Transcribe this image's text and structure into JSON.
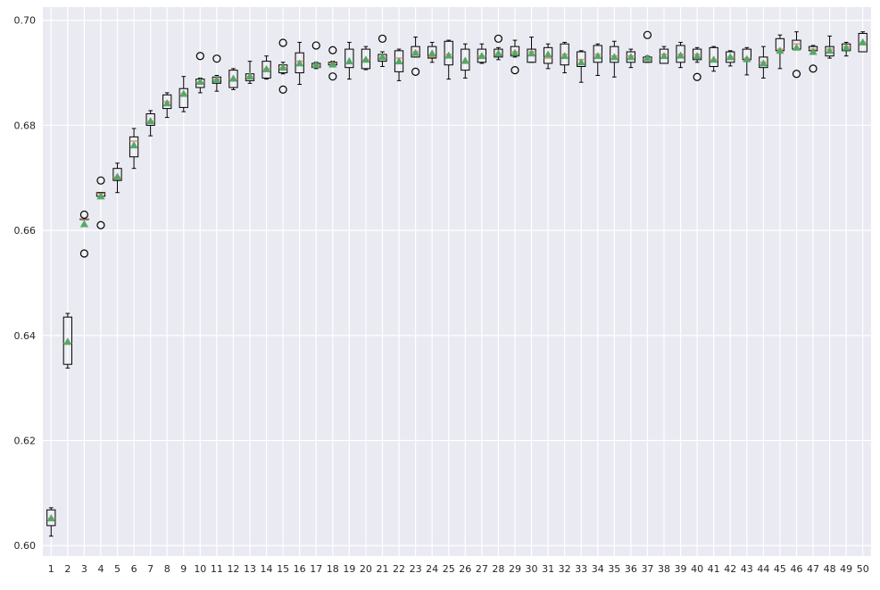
{
  "chart_data": {
    "type": "boxplot",
    "title": "",
    "xlabel": "",
    "ylabel": "",
    "ylim": [
      0.598,
      0.7025
    ],
    "grid": true,
    "colors": {
      "background": "#eaeaf2",
      "grid": "#ffffff",
      "box": "#000000",
      "median": "#dd8452",
      "mean_marker": "#55a868"
    },
    "categories": [
      "1",
      "2",
      "3",
      "4",
      "5",
      "6",
      "7",
      "8",
      "9",
      "10",
      "11",
      "12",
      "13",
      "14",
      "15",
      "16",
      "17",
      "18",
      "19",
      "20",
      "21",
      "22",
      "23",
      "24",
      "25",
      "26",
      "27",
      "28",
      "29",
      "30",
      "31",
      "32",
      "33",
      "34",
      "35",
      "36",
      "37",
      "38",
      "39",
      "40",
      "41",
      "42",
      "43",
      "44",
      "45",
      "46",
      "47",
      "48",
      "49",
      "50"
    ],
    "y_ticks": [
      "0.60",
      "0.62",
      "0.64",
      "0.66",
      "0.68",
      "0.70"
    ],
    "y_tick_values": [
      0.6,
      0.62,
      0.64,
      0.66,
      0.68,
      0.7
    ],
    "boxes": [
      {
        "x": "1",
        "whislo": 0.6018,
        "q1": 0.6038,
        "med": 0.6052,
        "q3": 0.6068,
        "whishi": 0.6072,
        "mean": 0.6052,
        "fliers": []
      },
      {
        "x": "2",
        "whislo": 0.6338,
        "q1": 0.6345,
        "med": 0.6385,
        "q3": 0.6435,
        "whishi": 0.6442,
        "mean": 0.6388,
        "fliers": []
      },
      {
        "x": "3",
        "whislo": 0.6622,
        "q1": 0.6622,
        "med": 0.6622,
        "q3": 0.6622,
        "whishi": 0.6622,
        "mean": 0.6612,
        "fliers": [
          0.663,
          0.6556
        ]
      },
      {
        "x": "4",
        "whislo": 0.6665,
        "q1": 0.6665,
        "med": 0.667,
        "q3": 0.6672,
        "whishi": 0.6672,
        "mean": 0.6665,
        "fliers": [
          0.6695,
          0.661
        ]
      },
      {
        "x": "5",
        "whislo": 0.6672,
        "q1": 0.6695,
        "med": 0.6702,
        "q3": 0.6718,
        "whishi": 0.6728,
        "mean": 0.6702,
        "fliers": []
      },
      {
        "x": "6",
        "whislo": 0.6718,
        "q1": 0.674,
        "med": 0.677,
        "q3": 0.6778,
        "whishi": 0.6794,
        "mean": 0.6762,
        "fliers": []
      },
      {
        "x": "7",
        "whislo": 0.678,
        "q1": 0.68,
        "med": 0.6808,
        "q3": 0.6822,
        "whishi": 0.6828,
        "mean": 0.6808,
        "fliers": []
      },
      {
        "x": "8",
        "whislo": 0.6815,
        "q1": 0.6832,
        "med": 0.6845,
        "q3": 0.6858,
        "whishi": 0.6862,
        "mean": 0.6842,
        "fliers": []
      },
      {
        "x": "9",
        "whislo": 0.6826,
        "q1": 0.6834,
        "med": 0.686,
        "q3": 0.687,
        "whishi": 0.6893,
        "mean": 0.686,
        "fliers": []
      },
      {
        "x": "10",
        "whislo": 0.6862,
        "q1": 0.6872,
        "med": 0.6882,
        "q3": 0.6888,
        "whishi": 0.689,
        "mean": 0.6883,
        "fliers": [
          0.6932
        ]
      },
      {
        "x": "11",
        "whislo": 0.6865,
        "q1": 0.688,
        "med": 0.6888,
        "q3": 0.6892,
        "whishi": 0.6895,
        "mean": 0.6887,
        "fliers": [
          0.6927
        ]
      },
      {
        "x": "12",
        "whislo": 0.6868,
        "q1": 0.6872,
        "med": 0.6888,
        "q3": 0.6905,
        "whishi": 0.6908,
        "mean": 0.6889,
        "fliers": []
      },
      {
        "x": "13",
        "whislo": 0.688,
        "q1": 0.6885,
        "med": 0.6893,
        "q3": 0.6898,
        "whishi": 0.6922,
        "mean": 0.6893,
        "fliers": []
      },
      {
        "x": "14",
        "whislo": 0.6888,
        "q1": 0.689,
        "med": 0.6908,
        "q3": 0.6922,
        "whishi": 0.6932,
        "mean": 0.6907,
        "fliers": []
      },
      {
        "x": "15",
        "whislo": 0.6898,
        "q1": 0.69,
        "med": 0.691,
        "q3": 0.6915,
        "whishi": 0.692,
        "mean": 0.691,
        "fliers": [
          0.6957,
          0.6868
        ]
      },
      {
        "x": "16",
        "whislo": 0.6878,
        "q1": 0.69,
        "med": 0.6922,
        "q3": 0.6938,
        "whishi": 0.6958,
        "mean": 0.6918,
        "fliers": []
      },
      {
        "x": "17",
        "whislo": 0.6908,
        "q1": 0.691,
        "med": 0.6915,
        "q3": 0.6918,
        "whishi": 0.692,
        "mean": 0.6915,
        "fliers": [
          0.6952
        ]
      },
      {
        "x": "18",
        "whislo": 0.6912,
        "q1": 0.6915,
        "med": 0.6918,
        "q3": 0.692,
        "whishi": 0.6922,
        "mean": 0.6916,
        "fliers": [
          0.6943,
          0.6893
        ]
      },
      {
        "x": "19",
        "whislo": 0.6888,
        "q1": 0.691,
        "med": 0.6918,
        "q3": 0.6945,
        "whishi": 0.6958,
        "mean": 0.6922,
        "fliers": []
      },
      {
        "x": "20",
        "whislo": 0.6906,
        "q1": 0.6908,
        "med": 0.6925,
        "q3": 0.6945,
        "whishi": 0.695,
        "mean": 0.6925,
        "fliers": []
      },
      {
        "x": "21",
        "whislo": 0.6912,
        "q1": 0.6922,
        "med": 0.693,
        "q3": 0.6935,
        "whishi": 0.694,
        "mean": 0.693,
        "fliers": [
          0.6965
        ]
      },
      {
        "x": "22",
        "whislo": 0.6885,
        "q1": 0.6902,
        "med": 0.6928,
        "q3": 0.6942,
        "whishi": 0.6945,
        "mean": 0.6922,
        "fliers": []
      },
      {
        "x": "23",
        "whislo": 0.693,
        "q1": 0.693,
        "med": 0.694,
        "q3": 0.695,
        "whishi": 0.6968,
        "mean": 0.6938,
        "fliers": [
          0.6902
        ]
      },
      {
        "x": "24",
        "whislo": 0.692,
        "q1": 0.6928,
        "med": 0.693,
        "q3": 0.695,
        "whishi": 0.6958,
        "mean": 0.6937,
        "fliers": []
      },
      {
        "x": "25",
        "whislo": 0.6888,
        "q1": 0.6915,
        "med": 0.6935,
        "q3": 0.696,
        "whishi": 0.6962,
        "mean": 0.6933,
        "fliers": []
      },
      {
        "x": "26",
        "whislo": 0.689,
        "q1": 0.6905,
        "med": 0.6918,
        "q3": 0.6945,
        "whishi": 0.6955,
        "mean": 0.6923,
        "fliers": []
      },
      {
        "x": "27",
        "whislo": 0.6918,
        "q1": 0.692,
        "med": 0.6932,
        "q3": 0.6945,
        "whishi": 0.6955,
        "mean": 0.6932,
        "fliers": []
      },
      {
        "x": "28",
        "whislo": 0.6925,
        "q1": 0.693,
        "med": 0.6935,
        "q3": 0.6945,
        "whishi": 0.6948,
        "mean": 0.6937,
        "fliers": [
          0.6965
        ]
      },
      {
        "x": "29",
        "whislo": 0.693,
        "q1": 0.6932,
        "med": 0.694,
        "q3": 0.695,
        "whishi": 0.6962,
        "mean": 0.6938,
        "fliers": [
          0.6905
        ]
      },
      {
        "x": "30",
        "whislo": 0.692,
        "q1": 0.692,
        "med": 0.694,
        "q3": 0.6945,
        "whishi": 0.6968,
        "mean": 0.6937,
        "fliers": []
      },
      {
        "x": "31",
        "whislo": 0.6908,
        "q1": 0.6918,
        "med": 0.6928,
        "q3": 0.6948,
        "whishi": 0.6955,
        "mean": 0.6935,
        "fliers": []
      },
      {
        "x": "32",
        "whislo": 0.69,
        "q1": 0.6915,
        "med": 0.6935,
        "q3": 0.6955,
        "whishi": 0.6958,
        "mean": 0.6932,
        "fliers": []
      },
      {
        "x": "33",
        "whislo": 0.6882,
        "q1": 0.6912,
        "med": 0.6925,
        "q3": 0.694,
        "whishi": 0.6942,
        "mean": 0.692,
        "fliers": []
      },
      {
        "x": "34",
        "whislo": 0.6895,
        "q1": 0.692,
        "med": 0.6935,
        "q3": 0.6952,
        "whishi": 0.6955,
        "mean": 0.6932,
        "fliers": []
      },
      {
        "x": "35",
        "whislo": 0.6892,
        "q1": 0.692,
        "med": 0.6932,
        "q3": 0.695,
        "whishi": 0.696,
        "mean": 0.693,
        "fliers": []
      },
      {
        "x": "36",
        "whislo": 0.691,
        "q1": 0.692,
        "med": 0.6932,
        "q3": 0.694,
        "whishi": 0.6945,
        "mean": 0.693,
        "fliers": []
      },
      {
        "x": "37",
        "whislo": 0.692,
        "q1": 0.692,
        "med": 0.6925,
        "q3": 0.693,
        "whishi": 0.6932,
        "mean": 0.6928,
        "fliers": [
          0.6972
        ]
      },
      {
        "x": "38",
        "whislo": 0.6918,
        "q1": 0.6918,
        "med": 0.6935,
        "q3": 0.6945,
        "whishi": 0.695,
        "mean": 0.6932,
        "fliers": []
      },
      {
        "x": "39",
        "whislo": 0.691,
        "q1": 0.692,
        "med": 0.6935,
        "q3": 0.6952,
        "whishi": 0.6958,
        "mean": 0.6933,
        "fliers": []
      },
      {
        "x": "40",
        "whislo": 0.692,
        "q1": 0.6925,
        "med": 0.6935,
        "q3": 0.6945,
        "whishi": 0.6948,
        "mean": 0.6932,
        "fliers": [
          0.6892
        ]
      },
      {
        "x": "41",
        "whislo": 0.6903,
        "q1": 0.6912,
        "med": 0.6925,
        "q3": 0.6948,
        "whishi": 0.695,
        "mean": 0.6925,
        "fliers": []
      },
      {
        "x": "42",
        "whislo": 0.6913,
        "q1": 0.692,
        "med": 0.693,
        "q3": 0.694,
        "whishi": 0.6942,
        "mean": 0.693,
        "fliers": []
      },
      {
        "x": "43",
        "whislo": 0.6896,
        "q1": 0.6925,
        "med": 0.6928,
        "q3": 0.6945,
        "whishi": 0.6948,
        "mean": 0.6926,
        "fliers": []
      },
      {
        "x": "44",
        "whislo": 0.689,
        "q1": 0.691,
        "med": 0.692,
        "q3": 0.693,
        "whishi": 0.695,
        "mean": 0.6918,
        "fliers": []
      },
      {
        "x": "45",
        "whislo": 0.6908,
        "q1": 0.6942,
        "med": 0.6945,
        "q3": 0.6965,
        "whishi": 0.6972,
        "mean": 0.6942,
        "fliers": []
      },
      {
        "x": "46",
        "whislo": 0.6945,
        "q1": 0.6945,
        "med": 0.6955,
        "q3": 0.6962,
        "whishi": 0.6978,
        "mean": 0.6948,
        "fliers": [
          0.6898
        ]
      },
      {
        "x": "47",
        "whislo": 0.6942,
        "q1": 0.6942,
        "med": 0.6945,
        "q3": 0.695,
        "whishi": 0.6952,
        "mean": 0.694,
        "fliers": [
          0.6908
        ]
      },
      {
        "x": "48",
        "whislo": 0.6928,
        "q1": 0.6932,
        "med": 0.6945,
        "q3": 0.695,
        "whishi": 0.697,
        "mean": 0.6942,
        "fliers": []
      },
      {
        "x": "49",
        "whislo": 0.6932,
        "q1": 0.6942,
        "med": 0.695,
        "q3": 0.6955,
        "whishi": 0.6958,
        "mean": 0.6948,
        "fliers": []
      },
      {
        "x": "50",
        "whislo": 0.694,
        "q1": 0.694,
        "med": 0.6958,
        "q3": 0.6975,
        "whishi": 0.6978,
        "mean": 0.6958,
        "fliers": []
      }
    ]
  }
}
